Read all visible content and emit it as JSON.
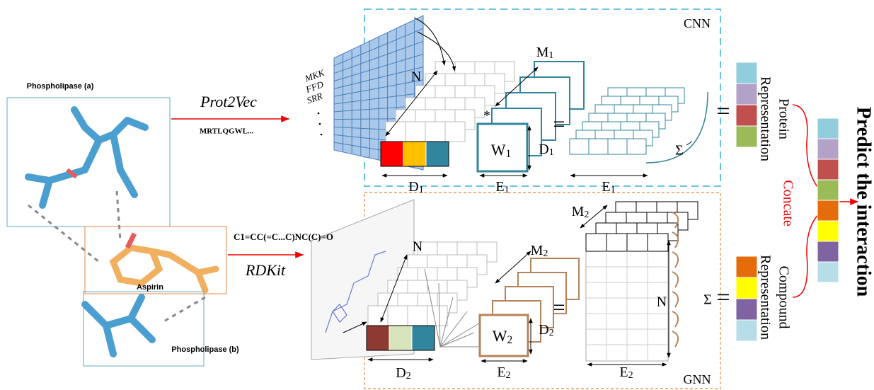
{
  "left": {
    "protein_a": "Phospholipase (a)",
    "ligand": "Aspirin",
    "protein_b": "Phospholipase (b)"
  },
  "sequence": {
    "method": "Prot2Vec",
    "text": "MRTLQGWL...",
    "rows": [
      "MKK",
      "FFD",
      "SRR"
    ]
  },
  "compound": {
    "method": "RDKit",
    "text": "C1=CC(=C...C)NC(C)=O"
  },
  "cnn": {
    "title": "CNN",
    "N": "N",
    "M": {
      "text": "M",
      "sub": "1"
    },
    "W": {
      "text": "W",
      "sub": "1"
    },
    "D_kernel": {
      "text": "D",
      "sub": "1"
    },
    "E_kernel": {
      "text": "E",
      "sub": "1"
    },
    "D_input": {
      "text": "D",
      "sub": "1"
    },
    "E_output": {
      "text": "E",
      "sub": "1"
    },
    "conv": "*",
    "equals": "=",
    "sum": "Σ",
    "input_colors": [
      "#ff0000",
      "#ffc000",
      "#31859c"
    ]
  },
  "gnn": {
    "title": "GNN",
    "N_input": "N",
    "N_output": "N",
    "M": {
      "text": "M",
      "sub": "2"
    },
    "M_output": {
      "text": "M",
      "sub": "2"
    },
    "W": {
      "text": "W",
      "sub": "2"
    },
    "D_kernel": {
      "text": "D",
      "sub": "2"
    },
    "E_kernel": {
      "text": "E",
      "sub": "2"
    },
    "D_input": {
      "text": "D",
      "sub": "2"
    },
    "E_output": {
      "text": "E",
      "sub": "2"
    },
    "equals": "=",
    "sum": "Σ",
    "input_colors": [
      "#8c3a32",
      "#d8e4bc",
      "#31859c"
    ]
  },
  "output": {
    "equals_protein": "=",
    "equals_compound": "=",
    "protein_label": [
      "Protein",
      "Representation"
    ],
    "protein_colors": [
      "#92cddc",
      "#b2a2c7",
      "#c0504d",
      "#9bbb59"
    ],
    "concat": "Concate",
    "compound_label": [
      "Compound",
      "Representation"
    ],
    "compound_colors": [
      "#e46c0a",
      "#ffff00",
      "#8064a2",
      "#b7dee8"
    ],
    "combined_colors": [
      "#92cddc",
      "#b2a2c7",
      "#c0504d",
      "#9bbb59",
      "#e46c0a",
      "#ffff00",
      "#8064a2",
      "#b7dee8"
    ],
    "title": "Predict the interaction"
  }
}
